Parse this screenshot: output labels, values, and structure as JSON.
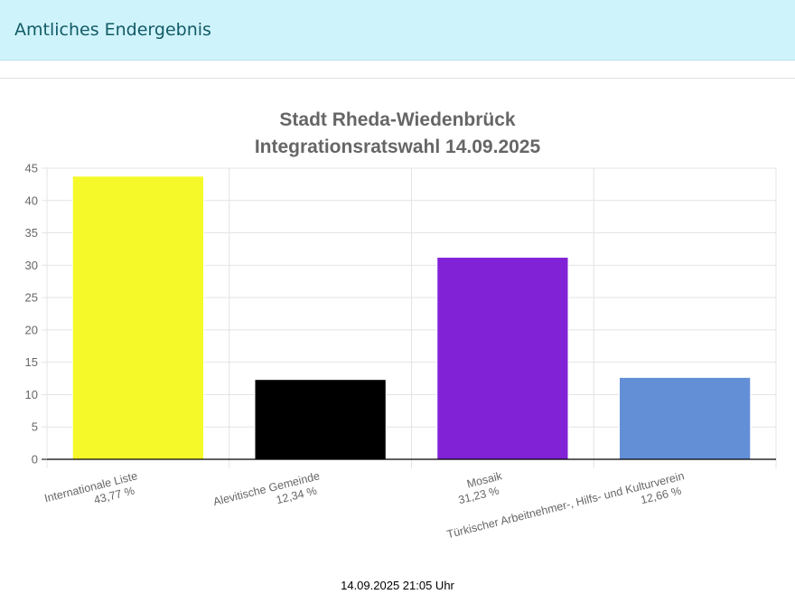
{
  "header": {
    "title": "Amtliches Endergebnis"
  },
  "chart_data": {
    "type": "bar",
    "title": [
      "Stadt Rheda-Wiedenbrück",
      "Integrationsratswahl 14.09.2025"
    ],
    "categories": [
      [
        "Internationale Liste",
        "43,77 %"
      ],
      [
        "Alevitische Gemeinde",
        "12,34 %"
      ],
      [
        "Mosaik",
        "31,23 %"
      ],
      [
        "Türkischer Arbeitnehmer-, Hilfs- und Kulturverein",
        "12,66 %"
      ]
    ],
    "values": [
      43.77,
      12.34,
      31.23,
      12.66
    ],
    "colors": [
      "#f5f929",
      "#000000",
      "#8222d6",
      "#638fd6"
    ],
    "ylim": [
      0,
      45
    ],
    "yticks": [
      0,
      5,
      10,
      15,
      20,
      25,
      30,
      35,
      40,
      45
    ],
    "grid": true,
    "legend": "none"
  },
  "footer": {
    "timestamp": "14.09.2025 21:05 Uhr"
  }
}
